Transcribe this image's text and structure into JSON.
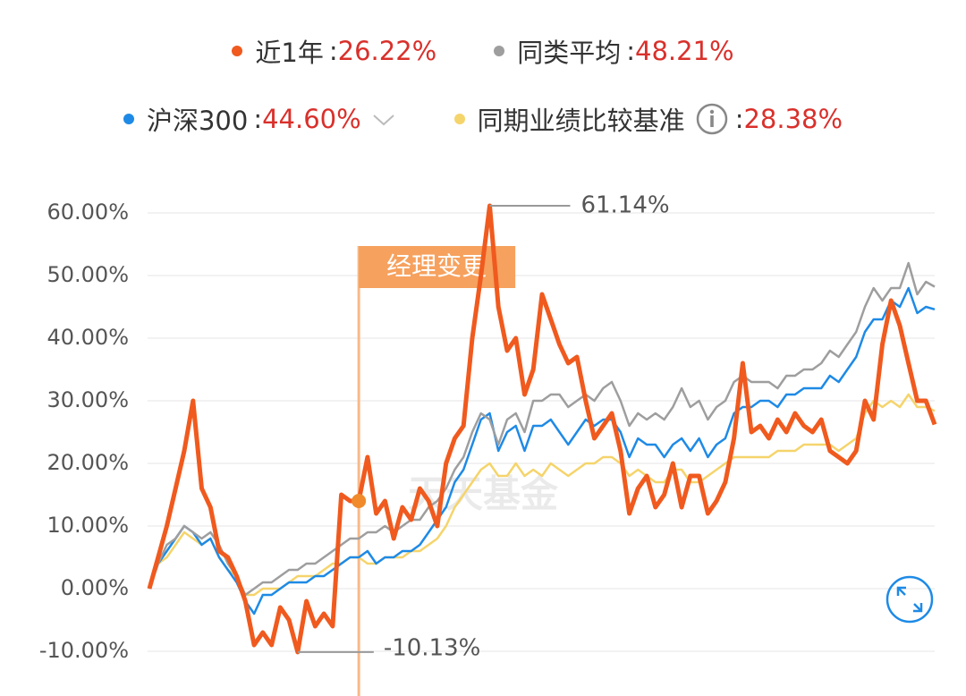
{
  "chart_data": {
    "type": "line",
    "legend_separator": ":",
    "watermark": "天天基金",
    "max_label": "61.14%",
    "min_label": "-10.13%",
    "events": [
      {
        "label": "经理变更",
        "index": 24
      }
    ],
    "ylim": [
      -13,
      63
    ],
    "yticks": [
      {
        "value": -10,
        "label": "-10.00%"
      },
      {
        "value": 0,
        "label": "0.00%"
      },
      {
        "value": 10,
        "label": "10.00%"
      },
      {
        "value": 20,
        "label": "20.00%"
      },
      {
        "value": 30,
        "label": "30.00%"
      },
      {
        "value": 40,
        "label": "40.00%"
      },
      {
        "value": 50,
        "label": "50.00%"
      },
      {
        "value": 60,
        "label": "60.00%"
      }
    ],
    "grid": true,
    "series": [
      {
        "name": "近1年",
        "color": "#f05a1e",
        "summary_label": "26.22%",
        "values": [
          0,
          5,
          10,
          16,
          22,
          30,
          16,
          13,
          6,
          5,
          2,
          -2,
          -9,
          -7,
          -9,
          -3,
          -5,
          -10.13,
          -2,
          -6,
          -4,
          -6,
          15,
          14,
          14,
          21,
          12,
          14,
          8,
          13,
          11,
          16,
          14,
          10,
          20,
          24,
          26,
          40,
          50,
          61.14,
          45,
          38,
          40,
          31,
          35,
          47,
          43,
          39,
          36,
          37,
          30,
          24,
          26,
          28,
          22,
          12,
          16,
          18,
          13,
          15,
          20,
          13,
          18,
          18,
          12,
          14,
          17,
          24,
          36,
          25,
          26,
          24,
          27,
          25,
          28,
          26,
          25,
          27,
          22,
          21,
          20,
          22,
          30,
          27,
          39,
          46,
          42,
          36,
          30,
          30,
          26.22
        ]
      },
      {
        "name": "同类平均",
        "color": "#9e9e9e",
        "summary_label": "48.21%",
        "values": [
          0,
          4,
          7,
          8,
          10,
          9,
          8,
          9,
          7,
          4,
          2,
          -1,
          0,
          1,
          1,
          2,
          3,
          3,
          4,
          4,
          5,
          6,
          7,
          8,
          8,
          9,
          9,
          10,
          9,
          10,
          11,
          11,
          13,
          14,
          16,
          19,
          21,
          25,
          28,
          27,
          23,
          27,
          28,
          25,
          30,
          30,
          31,
          31,
          29,
          30,
          31,
          30,
          32,
          33,
          30,
          26,
          28,
          27,
          28,
          27,
          29,
          32,
          29,
          30,
          27,
          29,
          30,
          33,
          34,
          33,
          33,
          33,
          32,
          34,
          34,
          35,
          35,
          36,
          38,
          37,
          39,
          41,
          45,
          48,
          46,
          48,
          48,
          52,
          47,
          49,
          48.21
        ]
      },
      {
        "name": "沪深300",
        "color": "#1e8ae6",
        "summary_label": "44.60%",
        "values": [
          0,
          4,
          6,
          8,
          10,
          9,
          7,
          8,
          5,
          3,
          1,
          -2,
          -4,
          -1,
          -1,
          0,
          1,
          1,
          1,
          2,
          2,
          3,
          4,
          5,
          5,
          6,
          4,
          5,
          5,
          6,
          6,
          7,
          9,
          11,
          13,
          17,
          19,
          23,
          27,
          28,
          22,
          25,
          26,
          22,
          26,
          26,
          27,
          25,
          23,
          25,
          27,
          26,
          27,
          27,
          25,
          21,
          24,
          23,
          23,
          21,
          23,
          24,
          22,
          24,
          21,
          23,
          24,
          28,
          29,
          29,
          30,
          30,
          29,
          31,
          31,
          32,
          32,
          32,
          34,
          33,
          35,
          37,
          41,
          43,
          43,
          46,
          45,
          48,
          44,
          45,
          44.6
        ]
      },
      {
        "name": "同期业绩比较基准",
        "color": "#f5d46b",
        "summary_label": "28.38%",
        "values": [
          0,
          4,
          5,
          7,
          9,
          8,
          7,
          8,
          5,
          3,
          2,
          -1,
          -1,
          0,
          0,
          0,
          1,
          2,
          2,
          2,
          3,
          4,
          4,
          5,
          5,
          4,
          4,
          5,
          5,
          5,
          6,
          6,
          7,
          8,
          10,
          13,
          15,
          17,
          19,
          20,
          18,
          18,
          20,
          18,
          19,
          18,
          20,
          19,
          18,
          19,
          20,
          20,
          21,
          21,
          20,
          18,
          19,
          18,
          17,
          17,
          19,
          19,
          17,
          17,
          18,
          19,
          20,
          21,
          21,
          21,
          21,
          21,
          22,
          22,
          22,
          23,
          23,
          23,
          23,
          22,
          23,
          24,
          28,
          30,
          29,
          30,
          29,
          31,
          29,
          29,
          28.38
        ]
      }
    ]
  }
}
